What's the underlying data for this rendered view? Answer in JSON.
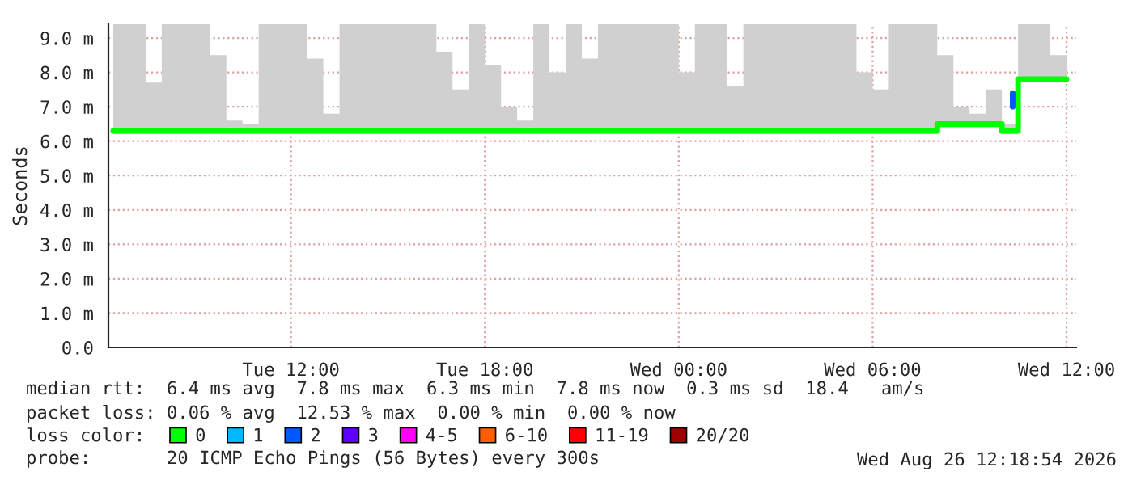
{
  "chart_data": {
    "type": "step",
    "ylabel": "Seconds",
    "xlim": [
      "2026-08-25T06:21",
      "2026-08-26T12:18"
    ],
    "ylim": [
      0,
      9.4
    ],
    "xticks": [
      {
        "value": "2026-08-25T12:00",
        "label": "Tue 12:00"
      },
      {
        "value": "2026-08-25T18:00",
        "label": "Tue 18:00"
      },
      {
        "value": "2026-08-26T00:00",
        "label": "Wed 00:00"
      },
      {
        "value": "2026-08-26T06:00",
        "label": "Wed 06:00"
      },
      {
        "value": "2026-08-26T12:00",
        "label": "Wed 12:00"
      }
    ],
    "yticks": [
      {
        "value": 0,
        "label": "0.0"
      },
      {
        "value": 1,
        "label": "1.0 m"
      },
      {
        "value": 2,
        "label": "2.0 m"
      },
      {
        "value": 3,
        "label": "3.0 m"
      },
      {
        "value": 4,
        "label": "4.0 m"
      },
      {
        "value": 5,
        "label": "5.0 m"
      },
      {
        "value": 6,
        "label": "6.0 m"
      },
      {
        "value": 7,
        "label": "7.0 m"
      },
      {
        "value": 8,
        "label": "8.0 m"
      },
      {
        "value": 9,
        "label": "9.0 m"
      }
    ],
    "grid": true,
    "legend": "bottom",
    "legend_title": "loss color:",
    "series": [
      {
        "name": "0",
        "color": "#00ff00",
        "x": [
          "2026-08-25T06:30",
          "2026-08-25T07:00",
          "2026-08-25T07:30",
          "2026-08-25T08:00",
          "2026-08-25T08:30",
          "2026-08-25T09:00",
          "2026-08-25T09:30",
          "2026-08-25T10:00",
          "2026-08-25T10:30",
          "2026-08-25T11:00",
          "2026-08-25T11:30",
          "2026-08-25T12:00",
          "2026-08-25T12:30",
          "2026-08-25T13:00",
          "2026-08-25T13:30",
          "2026-08-25T14:00",
          "2026-08-25T14:30",
          "2026-08-25T15:00",
          "2026-08-25T15:30",
          "2026-08-25T16:00",
          "2026-08-25T16:30",
          "2026-08-25T17:00",
          "2026-08-25T17:30",
          "2026-08-25T18:00",
          "2026-08-25T18:30",
          "2026-08-25T19:00",
          "2026-08-25T19:30",
          "2026-08-25T20:00",
          "2026-08-25T20:30",
          "2026-08-25T21:00",
          "2026-08-25T21:30",
          "2026-08-25T22:00",
          "2026-08-25T22:30",
          "2026-08-25T23:00",
          "2026-08-25T23:30",
          "2026-08-26T00:00",
          "2026-08-26T00:30",
          "2026-08-26T01:00",
          "2026-08-26T01:30",
          "2026-08-26T02:00",
          "2026-08-26T02:30",
          "2026-08-26T03:00",
          "2026-08-26T03:30",
          "2026-08-26T04:00",
          "2026-08-26T04:30",
          "2026-08-26T05:00",
          "2026-08-26T05:30",
          "2026-08-26T06:00",
          "2026-08-26T06:30",
          "2026-08-26T07:00",
          "2026-08-26T07:30",
          "2026-08-26T08:00",
          "2026-08-26T08:30",
          "2026-08-26T09:00",
          "2026-08-26T09:30",
          "2026-08-26T10:00",
          "2026-08-26T10:30",
          "2026-08-26T11:00",
          "2026-08-26T11:30",
          "2026-08-26T12:00"
        ],
        "values": [
          6.3,
          6.3,
          6.3,
          6.3,
          6.3,
          6.3,
          6.3,
          6.3,
          6.3,
          6.3,
          6.3,
          6.3,
          6.3,
          6.3,
          6.3,
          6.3,
          6.3,
          6.3,
          6.3,
          6.3,
          6.3,
          6.3,
          6.3,
          6.3,
          6.3,
          6.3,
          6.3,
          6.3,
          6.3,
          6.3,
          6.3,
          6.3,
          6.3,
          6.3,
          6.3,
          6.3,
          6.3,
          6.3,
          6.3,
          6.3,
          6.3,
          6.3,
          6.3,
          6.3,
          6.3,
          6.3,
          6.3,
          6.3,
          6.3,
          6.3,
          6.3,
          6.5,
          6.5,
          6.5,
          6.5,
          6.3,
          7.8,
          7.8,
          7.8,
          7.8
        ],
        "lower": [
          6.2,
          6.2,
          6.2,
          6.2,
          6.2,
          6.2,
          6.2,
          6.2,
          6.2,
          6.2,
          6.2,
          6.2,
          6.2,
          6.2,
          6.2,
          6.2,
          6.2,
          6.2,
          6.2,
          6.2,
          6.2,
          6.2,
          6.2,
          6.2,
          6.2,
          6.2,
          6.2,
          6.2,
          6.2,
          6.2,
          6.2,
          6.2,
          6.2,
          6.2,
          6.2,
          6.2,
          6.2,
          6.2,
          6.2,
          6.2,
          6.2,
          6.2,
          6.2,
          6.2,
          6.2,
          6.2,
          6.2,
          6.2,
          6.2,
          6.2,
          6.2,
          6.4,
          6.4,
          6.4,
          6.4,
          6.2,
          7.7,
          7.7,
          7.7,
          7.7
        ],
        "upper": [
          9.4,
          9.4,
          7.7,
          9.4,
          9.4,
          9.4,
          8.5,
          6.6,
          6.5,
          9.4,
          9.4,
          9.4,
          8.4,
          6.8,
          9.4,
          9.4,
          9.4,
          9.4,
          9.4,
          9.4,
          8.6,
          7.5,
          9.4,
          8.2,
          7.0,
          6.6,
          9.4,
          8.0,
          9.4,
          8.4,
          9.4,
          9.4,
          9.4,
          9.4,
          9.4,
          8.0,
          9.4,
          9.4,
          7.6,
          9.4,
          9.4,
          9.4,
          9.4,
          9.4,
          9.4,
          9.4,
          8.0,
          7.5,
          9.4,
          9.4,
          9.4,
          8.5,
          7.0,
          6.8,
          7.5,
          6.5,
          9.4,
          9.4,
          8.5,
          7.9
        ]
      },
      {
        "name": "1",
        "color": "#00b8ff"
      },
      {
        "name": "2",
        "type": "line",
        "color": "#0059ff",
        "x": [
          "2026-08-26T10:20",
          "2026-08-26T10:20"
        ],
        "values": [
          7.0,
          7.4
        ]
      },
      {
        "name": "3",
        "color": "#5e00ff"
      },
      {
        "name": "4-5",
        "color": "#ff00ff"
      },
      {
        "name": "6-10",
        "color": "#ff5e00"
      },
      {
        "name": "11-19",
        "color": "#ff0000"
      },
      {
        "name": "20/20",
        "color": "#a10000"
      }
    ],
    "annotations": [
      "median rtt:  6.4 ms avg  7.8 ms max  6.3 ms min  7.8 ms now  0.3 ms sd  18.4   am/s",
      "packet loss: 0.06 % avg  12.53 % max  0.00 % min  0.00 % now",
      "probe:       20 ICMP Echo Pings (56 Bytes) every 300s",
      "Wed Aug 26 12:18:54 2026"
    ]
  }
}
